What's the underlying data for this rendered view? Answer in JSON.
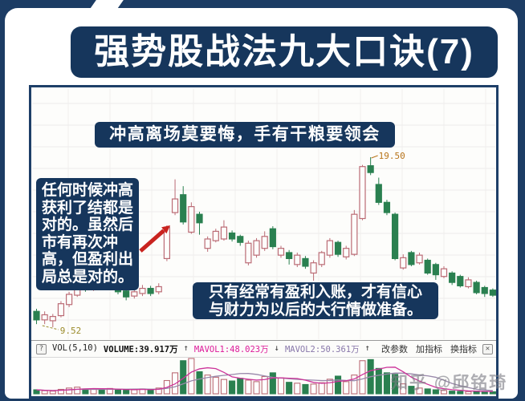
{
  "banner": {
    "title": "强势股战法九大口诀(7)"
  },
  "overlays": {
    "headline": "冲高离场莫要悔，手有干粮要领会",
    "left_note": "任何时候冲高\n获利了结都是\n对的。虽然后\n市有再次冲\n高，但盈利出\n局总是对的。",
    "bottom_note": "只有经常有盈利入账，才有信心\n与财力为以后的大行情做准备。"
  },
  "indicator_bar": {
    "help_icon": "?",
    "close_icon": "✕",
    "segments": [
      {
        "text": "VOL(5,10)",
        "color": "#222222",
        "bold": false
      },
      {
        "text": "VOLUME:39.917万",
        "color": "#111111",
        "bold": true
      },
      {
        "text": "↑",
        "color": "#333333",
        "bold": false
      },
      {
        "text": "MAVOL1:48.023万",
        "color": "#dd1899",
        "bold": false
      },
      {
        "text": "↓",
        "color": "#333333",
        "bold": false
      },
      {
        "text": "MAVOL2:50.361万",
        "color": "#8877aa",
        "bold": false
      },
      {
        "text": "↑",
        "color": "#333333",
        "bold": false
      }
    ],
    "buttons": [
      "改参数",
      "加指标",
      "换指标"
    ]
  },
  "watermark": {
    "text": "知乎 @邱铭琦"
  },
  "colors": {
    "navy": "#16365c",
    "up_candle": "#bb6b75",
    "down_candle": "#2a8050",
    "grid_h": "#edeceb",
    "grid_v": "#f1efee",
    "high_label": "#b8741a",
    "low_label": "#9b8b2a",
    "mavol1": "#cc3399",
    "mavol2": "#9988aa",
    "arrow": "#c9231f"
  },
  "chart_data": {
    "type": "candlestick",
    "title": "冲高离场莫要悔，手有干粮要领会",
    "grid": true,
    "price_range": [
      9.0,
      20.4
    ],
    "price_labels": {
      "high": {
        "text": "19.50",
        "value": 19.5,
        "index": 41
      },
      "low": {
        "text": "9.52",
        "value": 9.52,
        "index": 2
      }
    },
    "candles": {
      "open": [
        10.45,
        9.95,
        9.9,
        10.2,
        10.85,
        11.4,
        12.0,
        11.8,
        12.05,
        11.9,
        12.1,
        11.65,
        11.35,
        11.5,
        11.8,
        11.6,
        13.55,
        16.25,
        17.3,
        15.1,
        16.15,
        14.15,
        14.6,
        14.7,
        15.05,
        14.85,
        13.3,
        13.75,
        14.15,
        15.3,
        13.75,
        13.9,
        13.2,
        13.55,
        12.7,
        13.2,
        13.75,
        14.5,
        13.65,
        13.8,
        15.9,
        19.0,
        17.9,
        16.85,
        16.15,
        13.0,
        13.9,
        13.3,
        13.45,
        13.2,
        12.5,
        12.7,
        12.5,
        11.9,
        12.15,
        11.85,
        11.7
      ],
      "close": [
        9.95,
        10.25,
        10.15,
        10.9,
        11.45,
        11.95,
        11.75,
        12.1,
        11.9,
        12.2,
        11.6,
        11.3,
        11.6,
        11.8,
        11.5,
        11.9,
        15.4,
        17.05,
        15.7,
        16.6,
        15.65,
        14.7,
        15.15,
        15.4,
        14.7,
        14.5,
        14.45,
        14.6,
        14.85,
        14.25,
        14.15,
        13.55,
        13.75,
        13.1,
        13.3,
        13.9,
        14.6,
        13.8,
        14.15,
        16.15,
        18.95,
        18.6,
        16.85,
        16.25,
        13.55,
        13.6,
        13.2,
        13.75,
        12.7,
        12.6,
        12.95,
        12.15,
        11.95,
        12.3,
        11.55,
        11.5,
        11.4
      ],
      "high": [
        10.6,
        10.45,
        10.3,
        11.05,
        11.6,
        12.15,
        12.25,
        12.3,
        12.2,
        12.35,
        12.2,
        11.8,
        11.75,
        12.0,
        11.95,
        12.1,
        15.5,
        18.2,
        17.8,
        16.85,
        16.3,
        14.85,
        15.3,
        15.8,
        15.2,
        14.95,
        14.6,
        14.75,
        15.15,
        15.45,
        14.3,
        14.05,
        13.9,
        13.7,
        13.45,
        14.0,
        14.75,
        14.6,
        14.3,
        16.4,
        19.05,
        19.5,
        18.3,
        17.0,
        16.25,
        13.8,
        14.0,
        13.9,
        13.55,
        13.3,
        13.1,
        12.8,
        12.6,
        12.45,
        12.25,
        11.95,
        11.8
      ],
      "low": [
        9.7,
        9.7,
        9.52,
        10.1,
        10.7,
        11.3,
        11.6,
        11.65,
        11.7,
        11.75,
        11.45,
        11.1,
        11.2,
        11.35,
        11.35,
        11.45,
        13.4,
        16.1,
        15.55,
        15.0,
        14.95,
        13.95,
        14.5,
        14.6,
        14.55,
        14.3,
        13.15,
        13.6,
        14.0,
        14.1,
        13.6,
        13.2,
        13.05,
        12.95,
        12.25,
        13.05,
        13.6,
        13.65,
        13.5,
        13.7,
        15.8,
        18.45,
        16.7,
        16.1,
        13.45,
        12.9,
        13.1,
        13.2,
        12.6,
        12.3,
        12.4,
        12.0,
        11.85,
        11.8,
        11.45,
        11.3,
        11.3
      ]
    },
    "volume": [
      18,
      14,
      12,
      20,
      26,
      30,
      22,
      20,
      18,
      24,
      20,
      16,
      18,
      22,
      20,
      26,
      60,
      95,
      150,
      160,
      100,
      85,
      75,
      65,
      58,
      70,
      62,
      55,
      78,
      95,
      72,
      52,
      48,
      42,
      44,
      50,
      66,
      80,
      55,
      85,
      150,
      155,
      115,
      95,
      88,
      45,
      34,
      26,
      22,
      18,
      15,
      12,
      11,
      10,
      12,
      10,
      9
    ],
    "volume_ma_windows": [
      5,
      10
    ],
    "indicator_values": {
      "volume": "39.917万",
      "mavol1": "48.023万",
      "mavol2": "50.361万"
    }
  }
}
